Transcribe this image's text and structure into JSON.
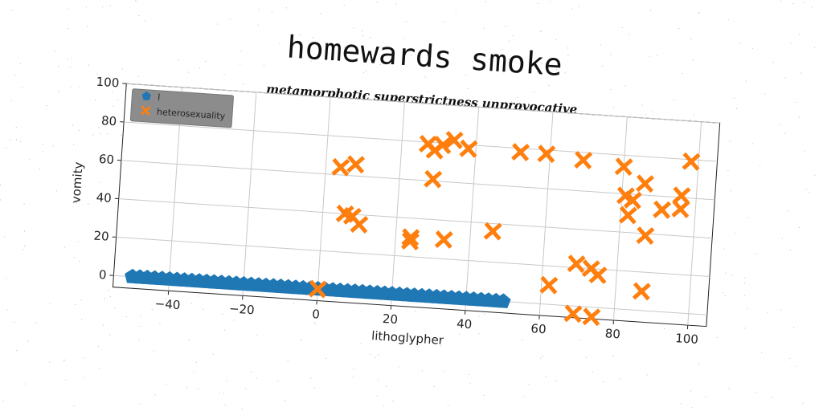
{
  "chart_data": {
    "type": "scatter",
    "title": "homewards smoke",
    "subtitle": "metamorphotic superstrictness unprovocative",
    "xlabel": "lithoglypher",
    "ylabel": "vomity",
    "xlim": [
      -55,
      105
    ],
    "ylim": [
      -6,
      100
    ],
    "xticks": [
      "−40",
      "−20",
      "0",
      "20",
      "40",
      "60",
      "80",
      "100"
    ],
    "yticks": [
      "0",
      "20",
      "40",
      "60",
      "80",
      "100"
    ],
    "grid": true,
    "legend_position": "top-left",
    "series": [
      {
        "name": "l",
        "color": "#1f77b4",
        "marker": "pentagon",
        "points": [
          [
            -50,
            0
          ],
          [
            -48,
            0
          ],
          [
            -46,
            0
          ],
          [
            -44,
            0
          ],
          [
            -42,
            0
          ],
          [
            -40,
            0
          ],
          [
            -38,
            0
          ],
          [
            -36,
            0
          ],
          [
            -34,
            0
          ],
          [
            -32,
            0
          ],
          [
            -30,
            0
          ],
          [
            -28,
            0
          ],
          [
            -26,
            0
          ],
          [
            -24,
            0
          ],
          [
            -22,
            0
          ],
          [
            -20,
            0
          ],
          [
            -18,
            0
          ],
          [
            -16,
            0
          ],
          [
            -14,
            0
          ],
          [
            -12,
            0
          ],
          [
            -10,
            0
          ],
          [
            -8,
            0
          ],
          [
            -6,
            0
          ],
          [
            -4,
            0
          ],
          [
            -2,
            0
          ],
          [
            0,
            0
          ],
          [
            2,
            0
          ],
          [
            4,
            0
          ],
          [
            6,
            0
          ],
          [
            8,
            0
          ],
          [
            10,
            0
          ],
          [
            12,
            0
          ],
          [
            14,
            0
          ],
          [
            16,
            0
          ],
          [
            18,
            0
          ],
          [
            20,
            0
          ],
          [
            22,
            0
          ],
          [
            24,
            0
          ],
          [
            26,
            0
          ],
          [
            28,
            0
          ],
          [
            30,
            0
          ],
          [
            32,
            0
          ],
          [
            34,
            0
          ],
          [
            36,
            0
          ],
          [
            38,
            0
          ],
          [
            40,
            0
          ],
          [
            42,
            0
          ],
          [
            44,
            0
          ],
          [
            46,
            0
          ],
          [
            48,
            0
          ],
          [
            50,
            0
          ]
        ]
      },
      {
        "name": "heterosexuality",
        "color": "#ff7f0e",
        "marker": "x",
        "points": [
          [
            0,
            0
          ],
          [
            4,
            64
          ],
          [
            8,
            66
          ],
          [
            6,
            40
          ],
          [
            8,
            39
          ],
          [
            10,
            35
          ],
          [
            24,
            28
          ],
          [
            24,
            30
          ],
          [
            27,
            79
          ],
          [
            29,
            61
          ],
          [
            29,
            76
          ],
          [
            31,
            79
          ],
          [
            33,
            30
          ],
          [
            34,
            82
          ],
          [
            38,
            78
          ],
          [
            46,
            36
          ],
          [
            52,
            78
          ],
          [
            59,
            78
          ],
          [
            62,
            10
          ],
          [
            69,
            76
          ],
          [
            69,
            22
          ],
          [
            69,
            -4
          ],
          [
            73,
            20
          ],
          [
            74,
            -5
          ],
          [
            75,
            17
          ],
          [
            80,
            74
          ],
          [
            81,
            59
          ],
          [
            82,
            49
          ],
          [
            83,
            57
          ],
          [
            86,
            66
          ],
          [
            87,
            39
          ],
          [
            87,
            10
          ],
          [
            91,
            53
          ],
          [
            96,
            61
          ],
          [
            96,
            54
          ],
          [
            98,
            79
          ]
        ]
      }
    ]
  }
}
